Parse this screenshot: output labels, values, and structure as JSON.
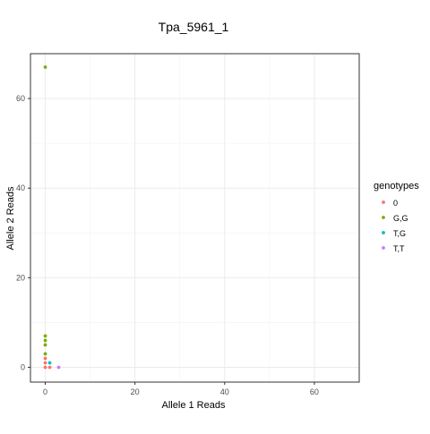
{
  "chart_data": {
    "type": "scatter",
    "title": "Tpa_5961_1",
    "xlabel": "Allele 1 Reads",
    "ylabel": "Allele 2 Reads",
    "xlim": [
      -3.3,
      70
    ],
    "ylim": [
      -3.3,
      70
    ],
    "x_ticks": [
      0,
      20,
      40,
      60
    ],
    "y_ticks": [
      0,
      20,
      40,
      60
    ],
    "grid": true,
    "legend": {
      "title": "genotypes",
      "placement": "right",
      "entries": [
        "0",
        "G,G",
        "T,G",
        "T,T"
      ]
    },
    "series": [
      {
        "name": "0",
        "color": "#F8766D",
        "points": [
          [
            0,
            0
          ],
          [
            1,
            0
          ],
          [
            0,
            1
          ],
          [
            0,
            2
          ]
        ]
      },
      {
        "name": "G,G",
        "color": "#7CAE00",
        "points": [
          [
            0,
            67
          ],
          [
            0,
            7
          ],
          [
            0,
            6
          ],
          [
            0,
            5
          ],
          [
            0,
            3
          ]
        ]
      },
      {
        "name": "T,G",
        "color": "#00BFC4",
        "points": [
          [
            1,
            1
          ]
        ]
      },
      {
        "name": "T,T",
        "color": "#C77CFF",
        "points": [
          [
            3,
            0
          ]
        ]
      }
    ]
  }
}
